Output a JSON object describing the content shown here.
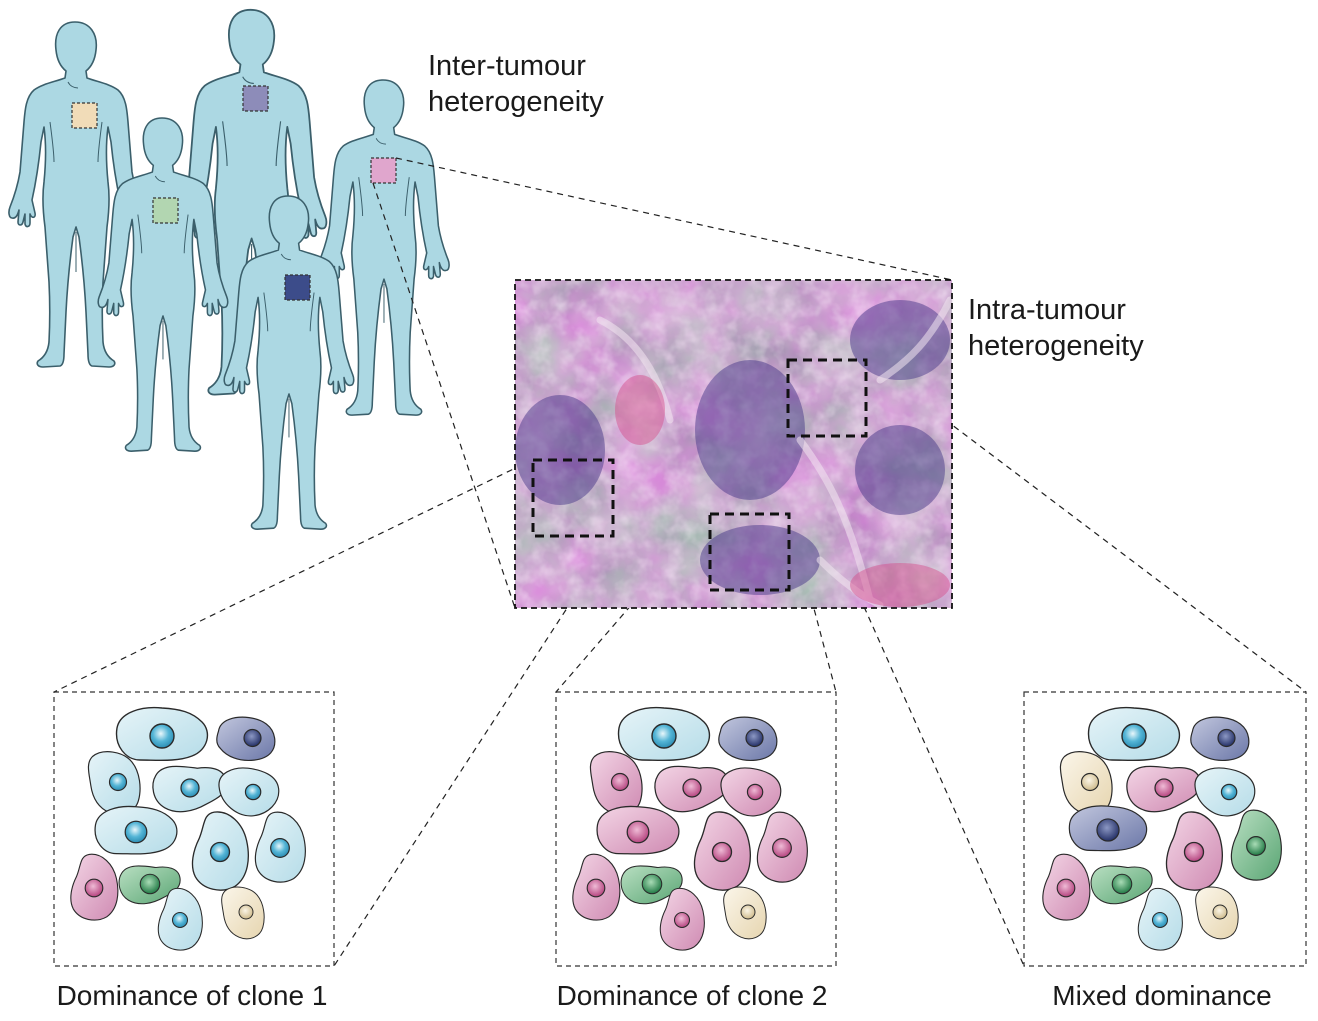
{
  "inter": {
    "line1": "Inter-tumour",
    "line2": "heterogeneity"
  },
  "intra": {
    "line1": "Intra-tumour",
    "line2": "heterogeneity"
  },
  "panels": [
    {
      "caption": "Dominance of clone 1"
    },
    {
      "caption": "Dominance of clone 2"
    },
    {
      "caption": "Mixed dominance"
    }
  ],
  "colors": {
    "body_fill": "#acd8e3",
    "body_stroke": "#3b5f6b",
    "tumour_marks": [
      "#f1dcb8",
      "#b2d6b1",
      "#8d8cb9",
      "#e0a6cd",
      "#3c4c8a"
    ],
    "histology_base": "#8c5c9a",
    "clone_light_blue": "#bfe1ec",
    "clone_dark_blue": "#5d6aa0",
    "clone_pink": "#d79dc2",
    "clone_green": "#6bb583",
    "clone_cream": "#efe1c4"
  }
}
